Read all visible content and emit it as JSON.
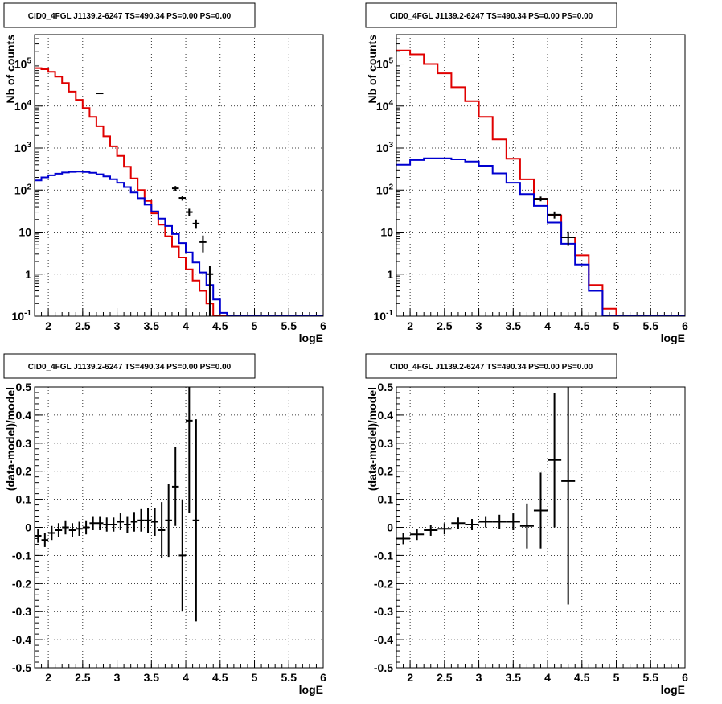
{
  "chart_data": [
    {
      "id": "top-left",
      "type": "line",
      "title": "CID0_4FGL J1139.2-6247 TS=490.34 PS=0.00 PS=0.00",
      "xlabel": "logE",
      "ylabel": "Nb of counts",
      "xlim": [
        1.8,
        6.0
      ],
      "ylim": [
        0.1,
        500000
      ],
      "yscale": "log",
      "grid": true,
      "x_ticks": [
        "2",
        "2.5",
        "3",
        "3.5",
        "4",
        "4.5",
        "5",
        "5.5",
        "6"
      ],
      "y_ticks": [
        "10^-1",
        "1",
        "10",
        "10^2",
        "10^3",
        "10^4",
        "10^5"
      ],
      "series": [
        {
          "color": "#e00000",
          "style": "histogram",
          "bin_edges": [
            1.8,
            1.9,
            2.0,
            2.1,
            2.2,
            2.3,
            2.4,
            2.5,
            2.6,
            2.7,
            2.8,
            2.9,
            3.0,
            3.1,
            3.2,
            3.3,
            3.4,
            3.5,
            3.6,
            3.7,
            3.8,
            3.9,
            4.0,
            4.1,
            4.2,
            4.3,
            4.4,
            4.5,
            4.6,
            4.7,
            4.8,
            4.9,
            5.0,
            5.1,
            5.2,
            5.3,
            5.4,
            5.5,
            5.6,
            5.7,
            5.8,
            5.9,
            6.0
          ],
          "values": [
            80000,
            75000,
            65000,
            50000,
            35000,
            22000,
            14000,
            9000,
            5500,
            3300,
            1900,
            1100,
            650,
            360,
            190,
            100,
            55,
            28,
            15,
            8,
            4.5,
            2.5,
            1.3,
            0.7,
            0.4,
            0.2,
            0.1,
            0.05,
            0.05,
            0.05,
            0.05,
            0.05,
            0.05,
            0.05,
            0.05,
            0.05,
            0.05,
            0.05,
            0.05,
            0.05,
            0.05,
            0.05
          ]
        },
        {
          "color": "#0000d0",
          "style": "histogram",
          "bin_edges": [
            1.8,
            1.9,
            2.0,
            2.1,
            2.2,
            2.3,
            2.4,
            2.5,
            2.6,
            2.7,
            2.8,
            2.9,
            3.0,
            3.1,
            3.2,
            3.3,
            3.4,
            3.5,
            3.6,
            3.7,
            3.8,
            3.9,
            4.0,
            4.1,
            4.2,
            4.3,
            4.4,
            4.5,
            4.6,
            4.7,
            4.8,
            4.9,
            5.0,
            5.1,
            5.2,
            5.3,
            5.4,
            5.5,
            5.6,
            5.7,
            5.8,
            5.9,
            6.0
          ],
          "values": [
            170,
            200,
            225,
            245,
            262,
            272,
            275,
            270,
            258,
            238,
            212,
            182,
            150,
            118,
            88,
            64,
            45,
            31,
            21,
            14,
            9,
            5.5,
            3.3,
            1.9,
            1.1,
            0.55,
            0.25,
            0.12,
            0.1,
            0.1,
            0.1,
            0.1,
            0.1,
            0.1,
            0.1,
            0.1,
            0.1,
            0.1,
            0.1,
            0.1,
            0.1,
            0.1
          ]
        },
        {
          "color": "#000000",
          "style": "points",
          "x": [
            2.75,
            3.85,
            3.95,
            4.05,
            4.15,
            4.25,
            4.35
          ],
          "y": [
            20000,
            110,
            65,
            30,
            16,
            5.8,
            1.0
          ],
          "yerr_up": [
            200,
            15,
            9,
            6,
            4,
            2.5,
            0.6
          ],
          "yerr_down": [
            200,
            15,
            9,
            6,
            4,
            2.5,
            0.95
          ],
          "xerr": [
            0.05,
            0.05,
            0.05,
            0.05,
            0.05,
            0.05,
            0.05
          ]
        }
      ]
    },
    {
      "id": "top-right",
      "type": "line",
      "title": "CID0_4FGL J1139.2-6247 TS=490.34 PS=0.00 PS=0.00",
      "xlabel": "logE",
      "ylabel": "Nb of counts",
      "xlim": [
        1.8,
        6.0
      ],
      "ylim": [
        0.1,
        500000
      ],
      "yscale": "log",
      "grid": true,
      "x_ticks": [
        "2",
        "2.5",
        "3",
        "3.5",
        "4",
        "4.5",
        "5",
        "5.5",
        "6"
      ],
      "y_ticks": [
        "10^-1",
        "1",
        "10",
        "10^2",
        "10^3",
        "10^4",
        "10^5"
      ],
      "series": [
        {
          "color": "#e00000",
          "style": "histogram",
          "bin_edges": [
            1.8,
            2.0,
            2.2,
            2.4,
            2.6,
            2.8,
            3.0,
            3.2,
            3.4,
            3.6,
            3.8,
            4.0,
            4.2,
            4.4,
            4.6,
            4.8,
            5.0,
            5.2,
            5.4,
            5.6,
            5.8,
            6.0
          ],
          "values": [
            210000,
            170000,
            100000,
            60000,
            28000,
            13000,
            5500,
            1600,
            560,
            180,
            62,
            25,
            7.5,
            2.8,
            0.55,
            0.15,
            0.08,
            0.08,
            0.08,
            0.08,
            0.08
          ]
        },
        {
          "color": "#0000d0",
          "style": "histogram",
          "bin_edges": [
            1.8,
            2.0,
            2.2,
            2.4,
            2.6,
            2.8,
            3.0,
            3.2,
            3.4,
            3.6,
            3.8,
            4.0,
            4.2,
            4.4,
            4.6,
            4.8,
            5.0,
            5.2,
            5.4,
            5.6,
            5.8,
            6.0
          ],
          "values": [
            400,
            520,
            570,
            570,
            540,
            480,
            380,
            250,
            150,
            80,
            42,
            17,
            5.3,
            1.7,
            0.4,
            0.1,
            0.1,
            0.1,
            0.1,
            0.1,
            0.1
          ]
        },
        {
          "color": "#000000",
          "style": "points",
          "x": [
            3.9,
            4.1,
            4.3
          ],
          "y": [
            62,
            26,
            7.5
          ],
          "yerr_up": [
            8,
            5,
            2.8
          ],
          "yerr_down": [
            8,
            5,
            2.8
          ],
          "xerr": [
            0.1,
            0.1,
            0.1
          ]
        }
      ]
    },
    {
      "id": "bottom-left",
      "type": "scatter",
      "title": "CID0_4FGL J1139.2-6247 TS=490.34 PS=0.00 PS=0.00",
      "xlabel": "logE",
      "ylabel": "(data-model)/model",
      "xlim": [
        1.8,
        6.0
      ],
      "ylim": [
        -0.5,
        0.5
      ],
      "yscale": "linear",
      "grid": true,
      "x_ticks": [
        "2",
        "2.5",
        "3",
        "3.5",
        "4",
        "4.5",
        "5",
        "5.5",
        "6"
      ],
      "y_ticks": [
        "-0.5",
        "-0.4",
        "-0.3",
        "-0.2",
        "-0.1",
        "0",
        "0.1",
        "0.2",
        "0.3",
        "0.4",
        "0.5"
      ],
      "series": [
        {
          "color": "#000000",
          "style": "points",
          "x": [
            1.85,
            1.95,
            2.05,
            2.15,
            2.25,
            2.35,
            2.45,
            2.55,
            2.65,
            2.75,
            2.85,
            2.95,
            3.05,
            3.15,
            3.25,
            3.35,
            3.45,
            3.55,
            3.65,
            3.75,
            3.85,
            3.95,
            4.05,
            4.15
          ],
          "y": [
            -0.03,
            -0.045,
            -0.02,
            -0.01,
            0.0,
            -0.01,
            -0.005,
            0.0,
            0.015,
            0.015,
            0.01,
            0.01,
            0.02,
            0.01,
            0.02,
            0.025,
            0.025,
            0.02,
            -0.01,
            0.025,
            0.145,
            -0.1,
            0.38,
            0.025
          ],
          "yerr": [
            0.025,
            0.025,
            0.025,
            0.025,
            0.025,
            0.025,
            0.025,
            0.025,
            0.025,
            0.025,
            0.025,
            0.025,
            0.03,
            0.03,
            0.035,
            0.04,
            0.045,
            0.05,
            0.1,
            0.13,
            0.14,
            0.2,
            0.33,
            0.36
          ],
          "xerr": [
            0.05,
            0.05,
            0.05,
            0.05,
            0.05,
            0.05,
            0.05,
            0.05,
            0.05,
            0.05,
            0.05,
            0.05,
            0.05,
            0.05,
            0.05,
            0.05,
            0.05,
            0.05,
            0.05,
            0.05,
            0.05,
            0.05,
            0.05,
            0.05
          ]
        }
      ]
    },
    {
      "id": "bottom-right",
      "type": "scatter",
      "title": "CID0_4FGL J1139.2-6247 TS=490.34 PS=0.00 PS=0.00",
      "xlabel": "logE",
      "ylabel": "(data-model)/model",
      "xlim": [
        1.8,
        6.0
      ],
      "ylim": [
        -0.5,
        0.5
      ],
      "yscale": "linear",
      "grid": true,
      "x_ticks": [
        "2",
        "2.5",
        "3",
        "3.5",
        "4",
        "4.5",
        "5",
        "5.5",
        "6"
      ],
      "y_ticks": [
        "-0.5",
        "-0.4",
        "-0.3",
        "-0.2",
        "-0.1",
        "0",
        "0.1",
        "0.2",
        "0.3",
        "0.4",
        "0.5"
      ],
      "series": [
        {
          "color": "#000000",
          "style": "points",
          "x": [
            1.9,
            2.1,
            2.3,
            2.5,
            2.7,
            2.9,
            3.1,
            3.3,
            3.5,
            3.7,
            3.9,
            4.1,
            4.3
          ],
          "y": [
            -0.04,
            -0.025,
            -0.01,
            -0.005,
            0.015,
            0.01,
            0.02,
            0.02,
            0.02,
            0.005,
            0.06,
            0.24,
            0.165
          ],
          "yerr": [
            0.02,
            0.02,
            0.02,
            0.02,
            0.02,
            0.02,
            0.02,
            0.025,
            0.03,
            0.08,
            0.135,
            0.24,
            0.44
          ],
          "xerr": [
            0.1,
            0.1,
            0.1,
            0.1,
            0.1,
            0.1,
            0.1,
            0.1,
            0.1,
            0.1,
            0.1,
            0.1,
            0.1
          ]
        }
      ]
    }
  ]
}
